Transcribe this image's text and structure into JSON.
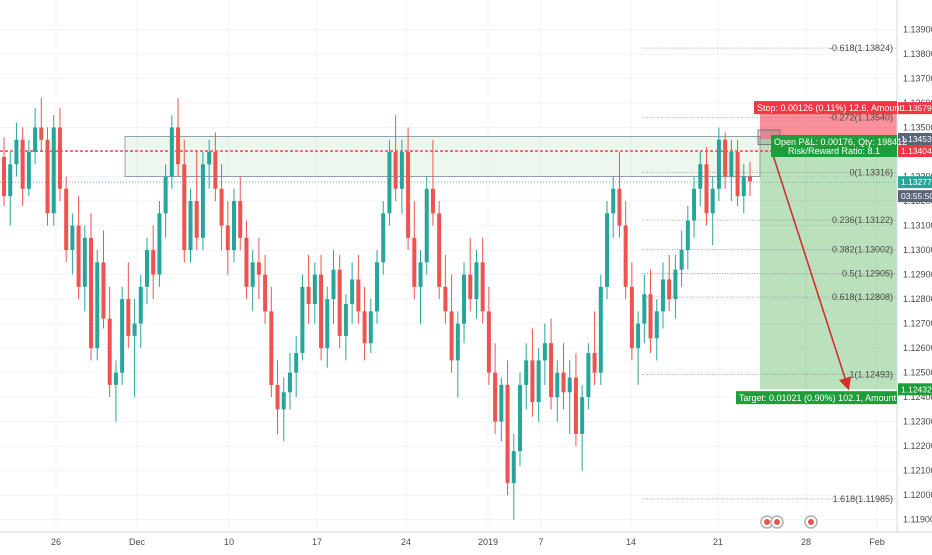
{
  "chart_data": {
    "type": "candlestick",
    "symbol_hint": "",
    "y_range": [
      1.1185,
      1.1402
    ],
    "y_ticks": [
      "1.13900",
      "1.13800",
      "1.13700",
      "1.13600",
      "1.13500",
      "1.13300",
      "1.13200",
      "1.13100",
      "1.13000",
      "1.12900",
      "1.12800",
      "1.12700",
      "1.12600",
      "1.12500",
      "1.12400",
      "1.12300",
      "1.12200",
      "1.12100",
      "1.12000",
      "1.11900"
    ],
    "x_ticks": [
      "26",
      "Dec",
      "10",
      "17",
      "24",
      "2019",
      "7",
      "14",
      "21",
      "28",
      "Feb"
    ],
    "price_tags": [
      {
        "value": 1.13579,
        "label": "1.13579",
        "color": "#f23645"
      },
      {
        "value": 1.13453,
        "label": "1.13453",
        "color": "#5a6478"
      },
      {
        "value": 1.13404,
        "label": "1.13404",
        "color": "#f23645"
      },
      {
        "value": 1.13277,
        "label": "1.13277",
        "color": "#26a69a"
      },
      {
        "value": 1.1322,
        "label": "03:55:50",
        "color": "#5a6478"
      },
      {
        "value": 1.12432,
        "label": "1.12432",
        "color": "#1e9e3a"
      }
    ],
    "fib_levels": [
      {
        "label": "-0.618(1.13824)",
        "value": 1.13824
      },
      {
        "label": "-0.272(1.13540)",
        "value": 1.1354
      },
      {
        "label": "0(1.13316)",
        "value": 1.13316
      },
      {
        "label": "0.236(1.13122)",
        "value": 1.13122
      },
      {
        "label": "0.382(1.13002)",
        "value": 1.13002
      },
      {
        "label": "0.5(1.12905)",
        "value": 1.12905
      },
      {
        "label": "0.618(1.12808)",
        "value": 1.12808
      },
      {
        "label": "1(1.12493)",
        "value": 1.12493
      },
      {
        "label": "1.618(1.11985)",
        "value": 1.11985
      }
    ],
    "stop_text": "Stop: 0.00126 (0.11%) 12.6, Amount",
    "pnl_text": "Open P&L: 0.00176, Qty: 198412",
    "rr_text": "Risk/Reward Ratio: 8.1",
    "target_text": "Target: 0.01021 (0.90%) 102.1, Amount:",
    "dashed_resistance": 1.13404,
    "zone_top": 1.13463,
    "zone_bottom": 1.133,
    "position_entry": 1.13453,
    "position_stop": 1.13579,
    "position_target": 1.12432,
    "candles": [
      [
        1.1338,
        1.1346,
        1.1318,
        1.1322
      ],
      [
        1.1322,
        1.134,
        1.131,
        1.1335
      ],
      [
        1.1335,
        1.1352,
        1.133,
        1.1345
      ],
      [
        1.1345,
        1.135,
        1.1318,
        1.1325
      ],
      [
        1.1325,
        1.1345,
        1.1322,
        1.134
      ],
      [
        1.134,
        1.1358,
        1.1335,
        1.135
      ],
      [
        1.135,
        1.1362,
        1.134,
        1.1345
      ],
      [
        1.1345,
        1.135,
        1.131,
        1.1315
      ],
      [
        1.1315,
        1.1355,
        1.131,
        1.135
      ],
      [
        1.135,
        1.1358,
        1.132,
        1.1325
      ],
      [
        1.1325,
        1.133,
        1.1295,
        1.13
      ],
      [
        1.13,
        1.1315,
        1.129,
        1.131
      ],
      [
        1.131,
        1.1322,
        1.128,
        1.1285
      ],
      [
        1.1285,
        1.131,
        1.1275,
        1.1305
      ],
      [
        1.1305,
        1.1315,
        1.1255,
        1.126
      ],
      [
        1.126,
        1.13,
        1.1255,
        1.1295
      ],
      [
        1.1295,
        1.1308,
        1.1268,
        1.1272
      ],
      [
        1.1272,
        1.1285,
        1.124,
        1.1245
      ],
      [
        1.1245,
        1.1255,
        1.123,
        1.125
      ],
      [
        1.125,
        1.1285,
        1.1245,
        1.128
      ],
      [
        1.128,
        1.1295,
        1.126,
        1.1265
      ],
      [
        1.1265,
        1.128,
        1.124,
        1.127
      ],
      [
        1.127,
        1.129,
        1.126,
        1.1285
      ],
      [
        1.1285,
        1.1305,
        1.1278,
        1.13
      ],
      [
        1.13,
        1.131,
        1.128,
        1.129
      ],
      [
        1.129,
        1.132,
        1.1285,
        1.1315
      ],
      [
        1.1315,
        1.1335,
        1.1305,
        1.133
      ],
      [
        1.133,
        1.1355,
        1.1325,
        1.135
      ],
      [
        1.135,
        1.1362,
        1.133,
        1.1335
      ],
      [
        1.1335,
        1.1345,
        1.1295,
        1.13
      ],
      [
        1.13,
        1.1325,
        1.1295,
        1.132
      ],
      [
        1.132,
        1.134,
        1.13,
        1.1305
      ],
      [
        1.1305,
        1.134,
        1.13,
        1.1335
      ],
      [
        1.1335,
        1.1345,
        1.1325,
        1.134
      ],
      [
        1.134,
        1.1348,
        1.132,
        1.1325
      ],
      [
        1.1325,
        1.1335,
        1.13,
        1.131
      ],
      [
        1.131,
        1.132,
        1.129,
        1.13
      ],
      [
        1.13,
        1.1325,
        1.1295,
        1.132
      ],
      [
        1.132,
        1.133,
        1.13,
        1.1305
      ],
      [
        1.1305,
        1.1312,
        1.128,
        1.1285
      ],
      [
        1.1285,
        1.13,
        1.1275,
        1.1295
      ],
      [
        1.1295,
        1.1305,
        1.128,
        1.129
      ],
      [
        1.129,
        1.1298,
        1.127,
        1.1275
      ],
      [
        1.1275,
        1.1285,
        1.124,
        1.1245
      ],
      [
        1.1245,
        1.1255,
        1.1225,
        1.1235
      ],
      [
        1.1235,
        1.1248,
        1.1222,
        1.1242
      ],
      [
        1.1242,
        1.1258,
        1.1235,
        1.125
      ],
      [
        1.125,
        1.1265,
        1.124,
        1.1258
      ],
      [
        1.1258,
        1.129,
        1.1255,
        1.1285
      ],
      [
        1.1285,
        1.1298,
        1.127,
        1.1278
      ],
      [
        1.1278,
        1.1295,
        1.127,
        1.129
      ],
      [
        1.129,
        1.1298,
        1.1255,
        1.126
      ],
      [
        1.126,
        1.1285,
        1.1252,
        1.128
      ],
      [
        1.128,
        1.13,
        1.127,
        1.1292
      ],
      [
        1.1292,
        1.1298,
        1.126,
        1.1265
      ],
      [
        1.1265,
        1.1282,
        1.1255,
        1.1278
      ],
      [
        1.1278,
        1.1295,
        1.127,
        1.1288
      ],
      [
        1.1288,
        1.1298,
        1.127,
        1.1275
      ],
      [
        1.1275,
        1.1285,
        1.1255,
        1.1262
      ],
      [
        1.1262,
        1.128,
        1.1258,
        1.1275
      ],
      [
        1.1275,
        1.13,
        1.127,
        1.1295
      ],
      [
        1.1295,
        1.132,
        1.129,
        1.1315
      ],
      [
        1.1315,
        1.1345,
        1.131,
        1.134
      ],
      [
        1.134,
        1.1355,
        1.132,
        1.1325
      ],
      [
        1.1325,
        1.1345,
        1.1315,
        1.134
      ],
      [
        1.134,
        1.135,
        1.13,
        1.1305
      ],
      [
        1.1305,
        1.132,
        1.128,
        1.1285
      ],
      [
        1.1285,
        1.13,
        1.127,
        1.1295
      ],
      [
        1.1295,
        1.133,
        1.129,
        1.1325
      ],
      [
        1.1325,
        1.1345,
        1.131,
        1.1315
      ],
      [
        1.1315,
        1.132,
        1.128,
        1.1285
      ],
      [
        1.1285,
        1.1298,
        1.127,
        1.1275
      ],
      [
        1.1275,
        1.129,
        1.125,
        1.1255
      ],
      [
        1.1255,
        1.1275,
        1.124,
        1.127
      ],
      [
        1.127,
        1.1295,
        1.1262,
        1.129
      ],
      [
        1.129,
        1.1305,
        1.1275,
        1.128
      ],
      [
        1.128,
        1.13,
        1.1272,
        1.1295
      ],
      [
        1.1295,
        1.1305,
        1.127,
        1.1275
      ],
      [
        1.1275,
        1.1285,
        1.1245,
        1.125
      ],
      [
        1.125,
        1.1262,
        1.1225,
        1.123
      ],
      [
        1.123,
        1.1248,
        1.1222,
        1.1245
      ],
      [
        1.1245,
        1.1255,
        1.12,
        1.1205
      ],
      [
        1.1205,
        1.1225,
        1.119,
        1.1218
      ],
      [
        1.1218,
        1.125,
        1.1212,
        1.1245
      ],
      [
        1.1245,
        1.1262,
        1.1235,
        1.1255
      ],
      [
        1.1255,
        1.1268,
        1.1232,
        1.1238
      ],
      [
        1.1238,
        1.126,
        1.123,
        1.1255
      ],
      [
        1.1255,
        1.127,
        1.1245,
        1.1262
      ],
      [
        1.1262,
        1.1272,
        1.1235,
        1.124
      ],
      [
        1.124,
        1.1255,
        1.123,
        1.125
      ],
      [
        1.125,
        1.1262,
        1.1235,
        1.1242
      ],
      [
        1.1242,
        1.1255,
        1.1225,
        1.1248
      ],
      [
        1.1248,
        1.1258,
        1.122,
        1.1225
      ],
      [
        1.1225,
        1.1245,
        1.121,
        1.124
      ],
      [
        1.124,
        1.1262,
        1.1235,
        1.1258
      ],
      [
        1.1258,
        1.1275,
        1.1245,
        1.125
      ],
      [
        1.125,
        1.129,
        1.1245,
        1.1285
      ],
      [
        1.1285,
        1.132,
        1.128,
        1.1315
      ],
      [
        1.1315,
        1.133,
        1.1305,
        1.1325
      ],
      [
        1.1325,
        1.134,
        1.1305,
        1.131
      ],
      [
        1.131,
        1.132,
        1.128,
        1.1285
      ],
      [
        1.1285,
        1.1295,
        1.1255,
        1.126
      ],
      [
        1.126,
        1.1275,
        1.1245,
        1.127
      ],
      [
        1.127,
        1.129,
        1.1262,
        1.1282
      ],
      [
        1.1282,
        1.1292,
        1.1258,
        1.1264
      ],
      [
        1.1264,
        1.128,
        1.1255,
        1.1275
      ],
      [
        1.1275,
        1.1295,
        1.1268,
        1.1288
      ],
      [
        1.1288,
        1.1298,
        1.1275,
        1.128
      ],
      [
        1.128,
        1.1298,
        1.1272,
        1.1292
      ],
      [
        1.1292,
        1.1308,
        1.1285,
        1.13
      ],
      [
        1.13,
        1.1318,
        1.1292,
        1.1312
      ],
      [
        1.1312,
        1.133,
        1.1305,
        1.1325
      ],
      [
        1.1325,
        1.134,
        1.1318,
        1.1335
      ],
      [
        1.1335,
        1.1342,
        1.131,
        1.1315
      ],
      [
        1.1315,
        1.133,
        1.1302,
        1.1325
      ],
      [
        1.1325,
        1.135,
        1.132,
        1.1345
      ],
      [
        1.1345,
        1.1348,
        1.1325,
        1.133
      ],
      [
        1.133,
        1.1345,
        1.132,
        1.134
      ],
      [
        1.134,
        1.1345,
        1.1318,
        1.1322
      ],
      [
        1.1322,
        1.1335,
        1.1315,
        1.133
      ],
      [
        1.133,
        1.1336,
        1.1322,
        1.1328
      ]
    ]
  }
}
